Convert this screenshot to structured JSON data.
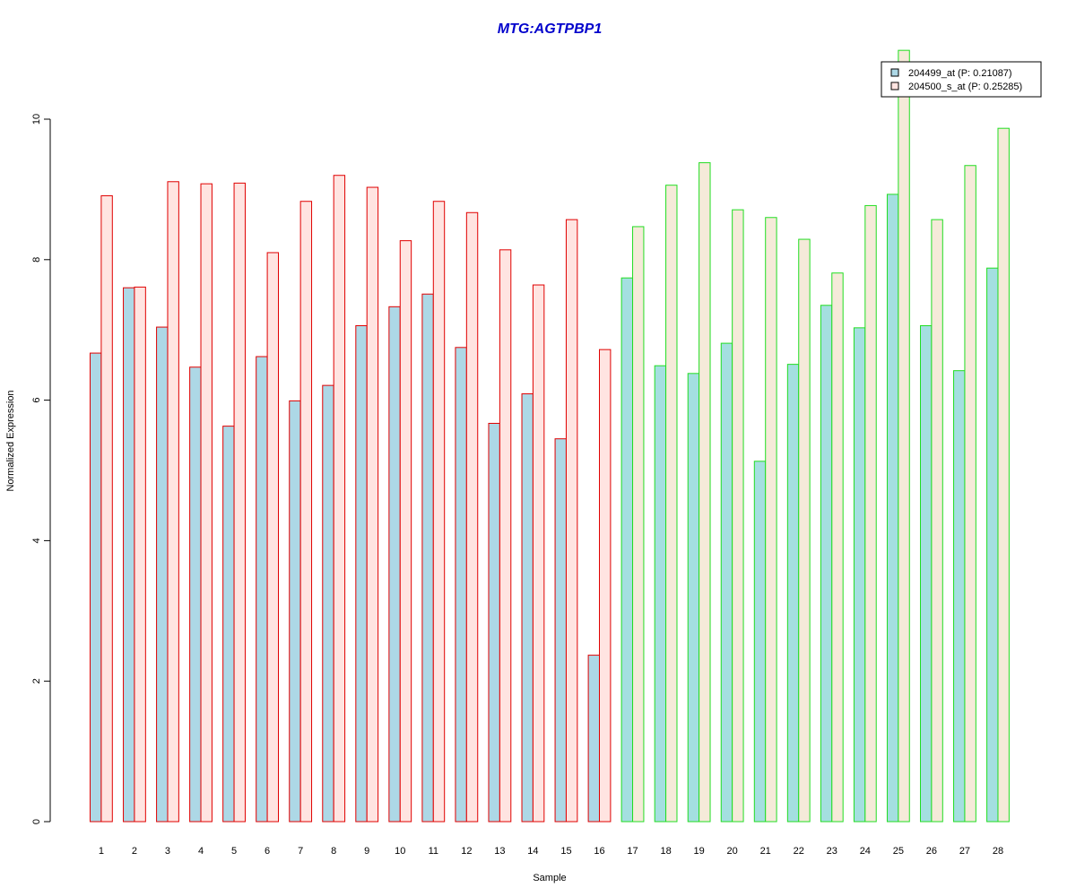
{
  "chart_data": {
    "type": "bar",
    "title": "MTG:AGTPBP1",
    "xlabel": "Sample",
    "ylabel": "Normalized Expression",
    "ylim": [
      0,
      10
    ],
    "yticks": [
      "0",
      "2",
      "4",
      "6",
      "8",
      "10"
    ],
    "categories": [
      "1",
      "2",
      "3",
      "4",
      "5",
      "6",
      "7",
      "8",
      "9",
      "10",
      "11",
      "12",
      "13",
      "14",
      "15",
      "16",
      "17",
      "18",
      "19",
      "20",
      "21",
      "22",
      "23",
      "24",
      "25",
      "26",
      "27",
      "28"
    ],
    "group_border_colors": [
      "#e00000",
      "#e00000",
      "#e00000",
      "#e00000",
      "#e00000",
      "#e00000",
      "#e00000",
      "#e00000",
      "#e00000",
      "#e00000",
      "#e00000",
      "#e00000",
      "#e00000",
      "#e00000",
      "#e00000",
      "#e00000",
      "#22dd22",
      "#22dd22",
      "#22dd22",
      "#22dd22",
      "#22dd22",
      "#22dd22",
      "#22dd22",
      "#22dd22",
      "#22dd22",
      "#22dd22",
      "#22dd22",
      "#22dd22"
    ],
    "series": [
      {
        "name": "204499_at (P: 0.21087)",
        "fill_colors": [
          "#add8e6",
          "#add8e6",
          "#add8e6",
          "#add8e6",
          "#add8e6",
          "#add8e6",
          "#add8e6",
          "#add8e6",
          "#add8e6",
          "#add8e6",
          "#add8e6",
          "#add8e6",
          "#add8e6",
          "#add8e6",
          "#add8e6",
          "#add8e6",
          "#a4dfe0",
          "#a4dfe0",
          "#a4dfe0",
          "#a4dfe0",
          "#a4dfe0",
          "#a4dfe0",
          "#a4dfe0",
          "#a4dfe0",
          "#a4dfe0",
          "#a4dfe0",
          "#a4dfe0",
          "#a4dfe0"
        ],
        "legend_fill": "#add8e6",
        "values": [
          6.67,
          7.6,
          7.04,
          6.47,
          5.63,
          6.62,
          5.99,
          6.21,
          7.06,
          7.33,
          7.51,
          6.75,
          5.67,
          6.09,
          5.45,
          2.37,
          7.74,
          6.49,
          6.38,
          6.81,
          5.13,
          6.51,
          7.35,
          7.03,
          8.93,
          7.06,
          6.42,
          7.88
        ]
      },
      {
        "name": "204500_s_at (P: 0.25285)",
        "fill_colors": [
          "#ffe4e1",
          "#ffe4e1",
          "#ffe4e1",
          "#ffe4e1",
          "#ffe4e1",
          "#ffe4e1",
          "#ffe4e1",
          "#ffe4e1",
          "#ffe4e1",
          "#ffe4e1",
          "#ffe4e1",
          "#ffe4e1",
          "#ffe4e1",
          "#ffe4e1",
          "#ffe4e1",
          "#ffe4e1",
          "#f5ead9",
          "#f5ead9",
          "#f5ead9",
          "#f5ead9",
          "#f5ead9",
          "#f5ead9",
          "#f5ead9",
          "#f5ead9",
          "#f5ead9",
          "#f5ead9",
          "#f5ead9",
          "#f5ead9"
        ],
        "legend_fill": "#ffe4e1",
        "values": [
          8.91,
          7.61,
          9.11,
          9.08,
          9.09,
          8.1,
          8.83,
          9.2,
          9.03,
          8.27,
          8.83,
          8.67,
          8.14,
          7.64,
          8.57,
          6.72,
          8.47,
          9.06,
          9.38,
          8.71,
          8.6,
          8.29,
          7.81,
          8.77,
          10.98,
          8.57,
          9.34,
          9.87
        ]
      }
    ],
    "legend_position": "top-right",
    "grid": false
  }
}
